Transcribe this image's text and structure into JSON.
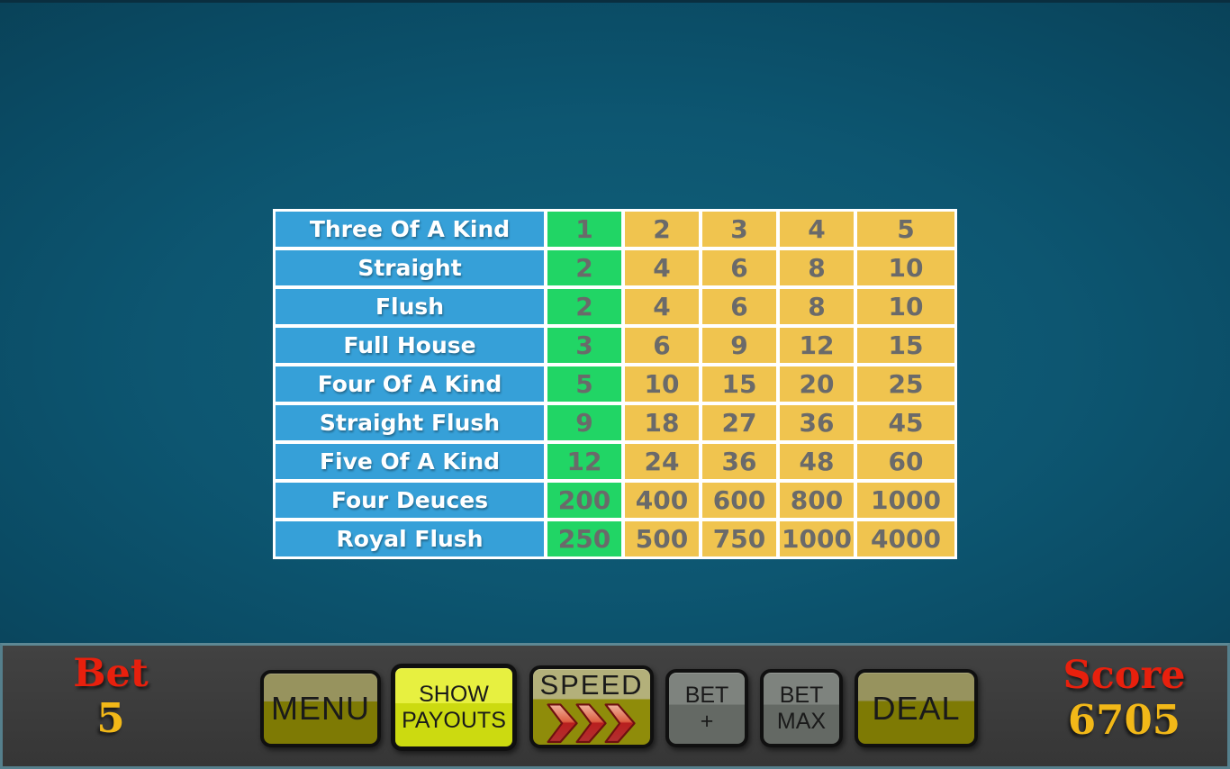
{
  "paytable": {
    "highlighted_column": 1,
    "rows": [
      {
        "label": "Three Of A Kind",
        "values": [
          "1",
          "2",
          "3",
          "4",
          "5"
        ]
      },
      {
        "label": "Straight",
        "values": [
          "2",
          "4",
          "6",
          "8",
          "10"
        ]
      },
      {
        "label": "Flush",
        "values": [
          "2",
          "4",
          "6",
          "8",
          "10"
        ]
      },
      {
        "label": "Full House",
        "values": [
          "3",
          "6",
          "9",
          "12",
          "15"
        ]
      },
      {
        "label": "Four Of A Kind",
        "values": [
          "5",
          "10",
          "15",
          "20",
          "25"
        ]
      },
      {
        "label": "Straight Flush",
        "values": [
          "9",
          "18",
          "27",
          "36",
          "45"
        ]
      },
      {
        "label": "Five Of A Kind",
        "values": [
          "12",
          "24",
          "36",
          "48",
          "60"
        ]
      },
      {
        "label": "Four Deuces",
        "values": [
          "200",
          "400",
          "600",
          "800",
          "1000"
        ]
      },
      {
        "label": "Royal Flush",
        "values": [
          "250",
          "500",
          "750",
          "1000",
          "4000"
        ]
      }
    ],
    "colors": {
      "label_bg": "#36a0d8",
      "label_text": "#ffffff",
      "highlight_bg": "#21d565",
      "value_bg": "#f0c44f",
      "value_text": "#6a6a6a",
      "grid": "#ffffff"
    }
  },
  "hud": {
    "bet_label": "Bet",
    "bet_value": "5",
    "score_label": "Score",
    "score_value": "6705",
    "label_color": "#e8200d",
    "value_color": "#f2b818"
  },
  "buttons": {
    "menu": {
      "label": "MENU"
    },
    "show_payouts": {
      "line1": "SHOW",
      "line2": "PAYOUTS"
    },
    "speed": {
      "label": "SPEED",
      "icon": "triple-red-chevron-right-icon"
    },
    "bet_plus": {
      "line1": "BET",
      "line2": "+"
    },
    "bet_max": {
      "line1": "BET",
      "line2": "MAX"
    },
    "deal": {
      "label": "DEAL"
    }
  },
  "colors": {
    "background_teal": "#0d5671",
    "control_bar_bg": "#3a3a3a",
    "control_bar_border": "#557f8c",
    "button_olive": "#7e7a04",
    "button_bright_yellow": "#ccda10",
    "button_gray": "#646964",
    "arrow_red": "#c02525"
  }
}
